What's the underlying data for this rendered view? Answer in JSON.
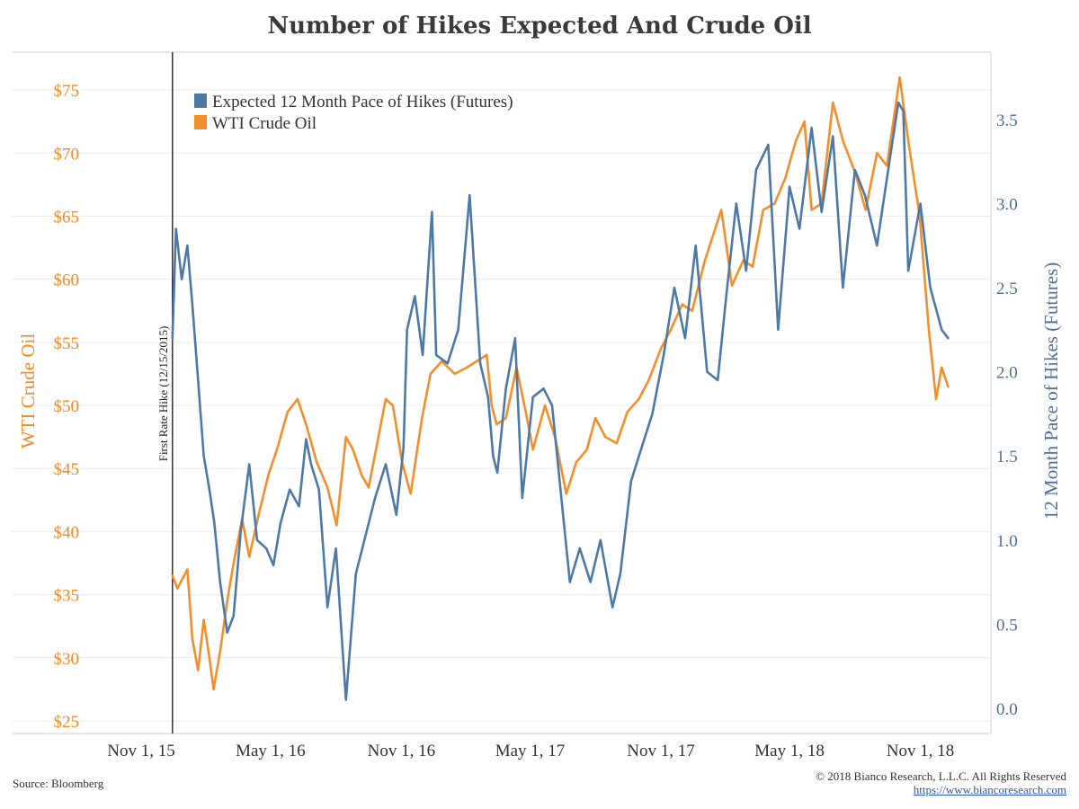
{
  "title": "Number of Hikes Expected And Crude Oil",
  "source": "Source: Bloomberg",
  "copyright": "© 2018 Bianco Research, L.L.C. All Rights Reserved",
  "url": "https://www.biancoresearch.com",
  "colors": {
    "hikes": "#4e79a7",
    "oil": "#f28e2b",
    "grid": "#ececec",
    "axis": "#d0d0d0",
    "vline": "#333333"
  },
  "chart_data": {
    "type": "line",
    "title": "Number of Hikes Expected And Crude Oil",
    "ylabel_left": "WTI Crude Oil",
    "ylabel_right": "12 Month Pace of Hikes (Futures)",
    "ylim_left": [
      24,
      78
    ],
    "ylim_right": [
      -0.15,
      3.9
    ],
    "yticks_left": [
      25,
      30,
      35,
      40,
      45,
      50,
      55,
      60,
      65,
      70,
      75
    ],
    "yticks_left_labels": [
      "$25",
      "$30",
      "$35",
      "$40",
      "$45",
      "$50",
      "$55",
      "$60",
      "$65",
      "$70",
      "$75"
    ],
    "yticks_right": [
      0.0,
      0.5,
      1.0,
      1.5,
      2.0,
      2.5,
      3.0,
      3.5
    ],
    "yticks_right_labels": [
      "0.0",
      "0.5",
      "1.0",
      "1.5",
      "2.0",
      "2.5",
      "3.0",
      "3.5"
    ],
    "xlim": [
      "2015-11-01",
      "2018-12-31"
    ],
    "xticks": [
      "2015-11-01",
      "2016-05-01",
      "2016-11-01",
      "2017-05-01",
      "2017-11-01",
      "2018-05-01",
      "2018-11-01"
    ],
    "xtick_labels": [
      "Nov 1, 15",
      "May 1, 16",
      "Nov 1, 16",
      "May 1, 17",
      "Nov 1, 17",
      "May 1, 18",
      "Nov 1, 18"
    ],
    "grid": true,
    "legend_position": "top-left",
    "annotation": {
      "date": "2015-12-15",
      "text": "First Rate Hike (12/15/2015)"
    },
    "series": [
      {
        "name": "Expected 12 Month Pace of Hikes (Futures)",
        "axis": "right",
        "x": [
          "2015-12-15",
          "2015-12-20",
          "2015-12-28",
          "2016-01-05",
          "2016-01-12",
          "2016-01-20",
          "2016-01-28",
          "2016-02-05",
          "2016-02-12",
          "2016-02-20",
          "2016-03-01",
          "2016-03-10",
          "2016-03-20",
          "2016-04-01",
          "2016-04-12",
          "2016-04-25",
          "2016-05-05",
          "2016-05-15",
          "2016-05-28",
          "2016-06-10",
          "2016-06-20",
          "2016-06-27",
          "2016-07-08",
          "2016-07-20",
          "2016-08-01",
          "2016-08-15",
          "2016-08-29",
          "2016-09-10",
          "2016-09-25",
          "2016-10-10",
          "2016-10-25",
          "2016-11-04",
          "2016-11-09",
          "2016-11-20",
          "2016-12-01",
          "2016-12-14",
          "2016-12-20",
          "2017-01-05",
          "2017-01-20",
          "2017-02-05",
          "2017-02-20",
          "2017-03-03",
          "2017-03-10",
          "2017-03-16",
          "2017-03-28",
          "2017-04-10",
          "2017-04-20",
          "2017-05-05",
          "2017-05-20",
          "2017-06-01",
          "2017-06-14",
          "2017-06-26",
          "2017-07-10",
          "2017-07-25",
          "2017-08-08",
          "2017-08-25",
          "2017-09-05",
          "2017-09-20",
          "2017-10-05",
          "2017-10-20",
          "2017-11-05",
          "2017-11-20",
          "2017-12-05",
          "2017-12-20",
          "2018-01-05",
          "2018-01-20",
          "2018-02-01",
          "2018-02-15",
          "2018-03-01",
          "2018-03-15",
          "2018-04-01",
          "2018-04-15",
          "2018-05-01",
          "2018-05-15",
          "2018-06-01",
          "2018-06-15",
          "2018-07-01",
          "2018-07-15",
          "2018-08-01",
          "2018-08-15",
          "2018-09-01",
          "2018-09-15",
          "2018-10-01",
          "2018-10-08",
          "2018-10-15",
          "2018-11-01",
          "2018-11-15",
          "2018-12-01",
          "2018-12-10"
        ],
        "values": [
          2.2,
          2.85,
          2.55,
          2.75,
          2.4,
          1.95,
          1.5,
          1.3,
          1.1,
          0.75,
          0.45,
          0.55,
          1.05,
          1.45,
          1.0,
          0.95,
          0.85,
          1.1,
          1.3,
          1.2,
          1.6,
          1.45,
          1.3,
          0.6,
          0.95,
          0.05,
          0.8,
          1.0,
          1.25,
          1.45,
          1.15,
          1.55,
          2.25,
          2.45,
          2.1,
          2.95,
          2.1,
          2.05,
          2.25,
          3.05,
          2.05,
          1.85,
          1.5,
          1.4,
          1.9,
          2.2,
          1.25,
          1.85,
          1.9,
          1.8,
          1.25,
          0.75,
          0.95,
          0.75,
          1.0,
          0.6,
          0.8,
          1.35,
          1.55,
          1.75,
          2.1,
          2.5,
          2.2,
          2.75,
          2.0,
          1.95,
          2.45,
          3.0,
          2.6,
          3.2,
          3.35,
          2.25,
          3.1,
          2.85,
          3.45,
          2.95,
          3.4,
          2.5,
          3.2,
          3.05,
          2.75,
          3.15,
          3.6,
          3.55,
          2.6,
          3.0,
          2.5,
          2.25,
          2.2
        ]
      },
      {
        "name": "WTI Crude Oil",
        "axis": "left",
        "x": [
          "2015-12-15",
          "2015-12-22",
          "2016-01-05",
          "2016-01-12",
          "2016-01-20",
          "2016-01-28",
          "2016-02-05",
          "2016-02-11",
          "2016-02-20",
          "2016-03-01",
          "2016-03-10",
          "2016-03-22",
          "2016-04-01",
          "2016-04-15",
          "2016-04-28",
          "2016-05-10",
          "2016-05-25",
          "2016-06-08",
          "2016-06-20",
          "2016-07-05",
          "2016-07-20",
          "2016-08-02",
          "2016-08-15",
          "2016-08-25",
          "2016-09-06",
          "2016-09-16",
          "2016-09-28",
          "2016-10-10",
          "2016-10-20",
          "2016-11-02",
          "2016-11-14",
          "2016-11-30",
          "2016-12-12",
          "2016-12-28",
          "2017-01-15",
          "2017-02-01",
          "2017-02-15",
          "2017-03-01",
          "2017-03-08",
          "2017-03-15",
          "2017-03-28",
          "2017-04-12",
          "2017-04-25",
          "2017-05-05",
          "2017-05-22",
          "2017-06-05",
          "2017-06-21",
          "2017-07-05",
          "2017-07-20",
          "2017-08-01",
          "2017-08-15",
          "2017-08-31",
          "2017-09-15",
          "2017-10-01",
          "2017-10-15",
          "2017-11-01",
          "2017-11-15",
          "2017-12-01",
          "2017-12-15",
          "2018-01-02",
          "2018-01-25",
          "2018-02-09",
          "2018-02-25",
          "2018-03-10",
          "2018-03-25",
          "2018-04-10",
          "2018-04-25",
          "2018-05-10",
          "2018-05-22",
          "2018-06-01",
          "2018-06-15",
          "2018-07-01",
          "2018-07-15",
          "2018-08-01",
          "2018-08-16",
          "2018-09-01",
          "2018-09-15",
          "2018-10-03",
          "2018-10-15",
          "2018-10-31",
          "2018-11-13",
          "2018-11-23",
          "2018-12-01",
          "2018-12-10"
        ],
        "values": [
          36.5,
          35.5,
          37.0,
          31.5,
          29.0,
          33.0,
          30.0,
          27.5,
          30.5,
          34.5,
          37.5,
          41.0,
          38.0,
          41.5,
          44.5,
          46.5,
          49.5,
          50.5,
          48.5,
          45.5,
          43.5,
          40.5,
          47.5,
          46.5,
          44.5,
          43.5,
          47.0,
          50.5,
          50.0,
          45.5,
          43.0,
          49.0,
          52.5,
          53.5,
          52.5,
          53.0,
          53.5,
          54.0,
          50.0,
          48.5,
          49.0,
          53.0,
          49.5,
          46.5,
          50.0,
          47.5,
          43.0,
          45.5,
          46.5,
          49.0,
          47.5,
          47.0,
          49.5,
          50.5,
          52.0,
          54.5,
          56.0,
          58.0,
          57.5,
          61.5,
          65.5,
          59.5,
          61.5,
          61.0,
          65.5,
          66.0,
          68.0,
          71.0,
          72.5,
          65.5,
          66.0,
          74.0,
          71.0,
          68.5,
          65.5,
          70.0,
          69.0,
          76.0,
          71.0,
          65.0,
          56.0,
          50.5,
          53.0,
          51.5
        ]
      }
    ]
  }
}
